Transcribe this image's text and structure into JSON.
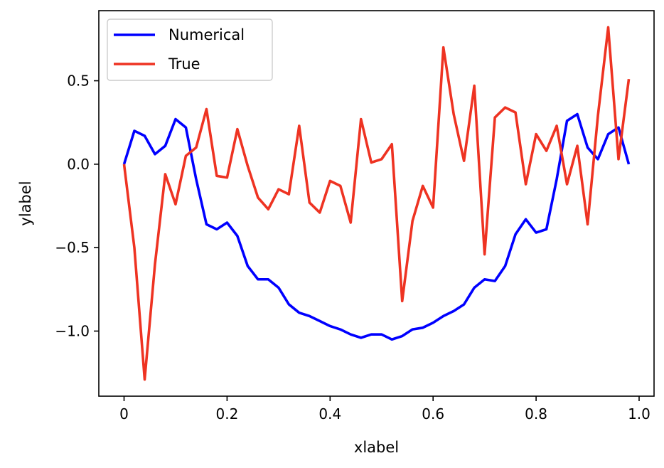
{
  "chart_data": {
    "type": "line",
    "title": "",
    "xlabel": "xlabel",
    "ylabel": "ylabel",
    "xlim": [
      -0.049,
      1.029
    ],
    "ylim": [
      -1.39,
      0.92
    ],
    "xticks": [
      0,
      0.2,
      0.4,
      0.6,
      0.8,
      1.0
    ],
    "xtick_labels": [
      "0",
      "0.2",
      "0.4",
      "0.6",
      "0.8",
      "1.0"
    ],
    "yticks": [
      0.5,
      0.0,
      -0.5,
      -1.0
    ],
    "ytick_labels": [
      "0.5",
      "0.0",
      "−0.5",
      "−1.0"
    ],
    "grid": false,
    "legend_position": "upper-left",
    "x": [
      0.0,
      0.02,
      0.04,
      0.06,
      0.08,
      0.1,
      0.12,
      0.14,
      0.16,
      0.18,
      0.2,
      0.22,
      0.24,
      0.26,
      0.28,
      0.3,
      0.32,
      0.34,
      0.36,
      0.38,
      0.4,
      0.42,
      0.44,
      0.46,
      0.48,
      0.5,
      0.52,
      0.54,
      0.56,
      0.58,
      0.6,
      0.62,
      0.64,
      0.66,
      0.68,
      0.7,
      0.72,
      0.74,
      0.76,
      0.78,
      0.8,
      0.82,
      0.84,
      0.86,
      0.88,
      0.9,
      0.92,
      0.94,
      0.96,
      0.98
    ],
    "series": [
      {
        "name": "Numerical",
        "color": "#0000ff",
        "values": [
          0.0,
          0.2,
          0.17,
          0.06,
          0.11,
          0.27,
          0.22,
          -0.09,
          -0.36,
          -0.39,
          -0.35,
          -0.43,
          -0.61,
          -0.69,
          -0.69,
          -0.74,
          -0.84,
          -0.89,
          -0.91,
          -0.94,
          -0.97,
          -0.99,
          -1.02,
          -1.04,
          -1.02,
          -1.02,
          -1.05,
          -1.03,
          -0.99,
          -0.98,
          -0.95,
          -0.91,
          -0.88,
          -0.84,
          -0.74,
          -0.69,
          -0.7,
          -0.61,
          -0.42,
          -0.33,
          -0.41,
          -0.39,
          -0.09,
          0.26,
          0.3,
          0.1,
          0.03,
          0.18,
          0.22,
          0.0
        ]
      },
      {
        "name": "True",
        "color": "#ee3322",
        "values": [
          0.0,
          -0.5,
          -1.29,
          -0.6,
          -0.06,
          -0.24,
          0.05,
          0.1,
          0.33,
          -0.07,
          -0.08,
          0.21,
          -0.01,
          -0.2,
          -0.27,
          -0.15,
          -0.18,
          0.23,
          -0.23,
          -0.29,
          -0.1,
          -0.13,
          -0.35,
          0.27,
          0.01,
          0.03,
          0.12,
          -0.82,
          -0.34,
          -0.13,
          -0.26,
          0.7,
          0.3,
          0.02,
          0.47,
          -0.54,
          0.28,
          0.34,
          0.31,
          -0.12,
          0.18,
          0.08,
          0.23,
          -0.12,
          0.11,
          -0.36,
          0.29,
          0.82,
          0.03,
          0.51
        ]
      }
    ]
  }
}
